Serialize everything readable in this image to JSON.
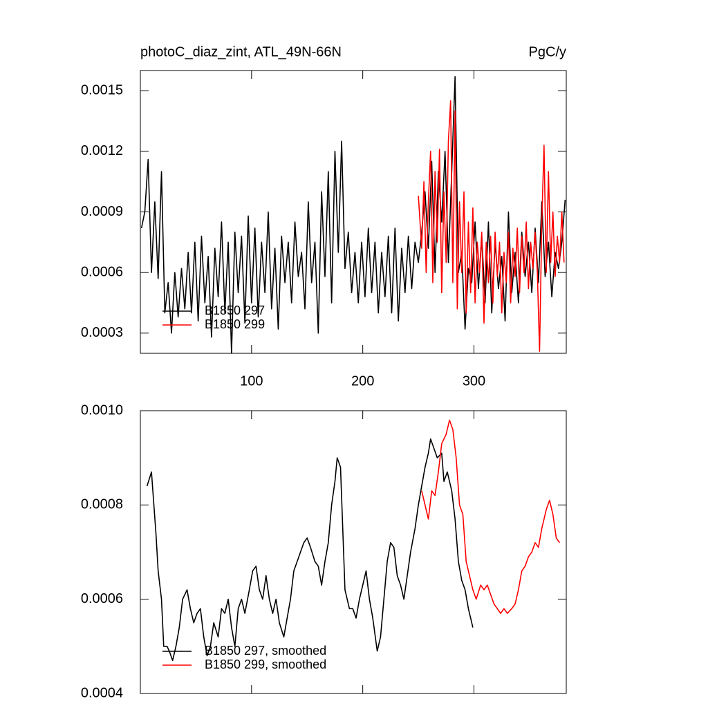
{
  "chart_data": [
    {
      "type": "line",
      "title": "photoC_diaz_zint, ATL_49N-66N",
      "units": "PgC/y",
      "xlim": [
        0,
        383
      ],
      "xticks": [
        100,
        200,
        300
      ],
      "xtick_labels": true,
      "ylim": [
        0.0002,
        0.0016
      ],
      "yticks": [
        0.0003,
        0.0006,
        0.0009,
        0.0012,
        0.0015
      ],
      "legend": "lower left",
      "series": [
        {
          "name": "B1850 297",
          "color": "#000000",
          "x": [
            1,
            4,
            7,
            10,
            13,
            16,
            19,
            22,
            25,
            28,
            31,
            34,
            37,
            40,
            43,
            46,
            49,
            52,
            55,
            58,
            61,
            64,
            67,
            70,
            73,
            76,
            79,
            82,
            85,
            88,
            91,
            94,
            97,
            100,
            103,
            106,
            109,
            112,
            115,
            118,
            121,
            124,
            127,
            130,
            133,
            136,
            139,
            142,
            145,
            148,
            151,
            154,
            157,
            160,
            163,
            166,
            169,
            172,
            175,
            178,
            181,
            184,
            187,
            190,
            193,
            196,
            199,
            202,
            205,
            208,
            211,
            214,
            217,
            220,
            223,
            226,
            229,
            232,
            235,
            238,
            241,
            244,
            247,
            250,
            253,
            256,
            259,
            262,
            265,
            268,
            271,
            274,
            277,
            280,
            283,
            286,
            289,
            292,
            295,
            298,
            301,
            304,
            307,
            310,
            313,
            316,
            319,
            322,
            325,
            328,
            331,
            334,
            337,
            340,
            343,
            346,
            349,
            352,
            355,
            358,
            361,
            364,
            367,
            370,
            373,
            376,
            379,
            382
          ],
          "values": [
            0.00082,
            0.0009,
            0.00116,
            0.0006,
            0.00095,
            0.00057,
            0.0011,
            0.0004,
            0.00055,
            0.0003,
            0.0006,
            0.00038,
            0.00062,
            0.00042,
            0.0007,
            0.0004,
            0.00075,
            0.00036,
            0.00078,
            0.00045,
            0.00068,
            0.00028,
            0.00072,
            0.00048,
            0.00085,
            0.0004,
            0.00075,
            0.0002,
            0.0008,
            0.0005,
            0.00078,
            0.00035,
            0.00088,
            0.00045,
            0.00082,
            0.00038,
            0.00075,
            0.0005,
            0.0009,
            0.00042,
            0.00072,
            0.00032,
            0.00078,
            0.00055,
            0.00075,
            0.00045,
            0.00085,
            0.00058,
            0.0007,
            0.00042,
            0.00095,
            0.00055,
            0.00075,
            0.0003,
            0.001,
            0.00058,
            0.0011,
            0.00045,
            0.0012,
            0.0007,
            0.00125,
            0.00062,
            0.0008,
            0.0005,
            0.0007,
            0.00045,
            0.00075,
            0.00048,
            0.00082,
            0.0005,
            0.00075,
            0.0004,
            0.0007,
            0.00048,
            0.00078,
            0.0004,
            0.00082,
            0.00036,
            0.00072,
            0.0005,
            0.00078,
            0.00052,
            0.00075,
            0.00065,
            0.0008,
            0.001,
            0.00072,
            0.00115,
            0.0006,
            0.0011,
            0.00085,
            0.0012,
            0.00065,
            0.0011,
            0.00157,
            0.0006,
            0.0007,
            0.00032,
            0.00062,
            0.00055,
            0.00085,
            0.00052,
            0.00078,
            0.00045,
            0.00085,
            0.0004,
            0.00075,
            0.00052,
            0.00068,
            0.00036,
            0.0009,
            0.0005,
            0.0007,
            0.00045,
            0.0008,
            0.00058,
            0.00075,
            0.0005,
            0.00082,
            0.00055,
            0.00095,
            0.00058,
            0.00075,
            0.00048,
            0.0007,
            0.00062,
            0.00075,
            0.00096
          ]
        },
        {
          "name": "B1850 299",
          "color": "#ff0000",
          "x": [
            250,
            253,
            255,
            257,
            259,
            261,
            263,
            265,
            267,
            269,
            271,
            273,
            275,
            277,
            279,
            281,
            283,
            285,
            287,
            289,
            291,
            293,
            295,
            297,
            299,
            301,
            303,
            305,
            307,
            309,
            311,
            313,
            315,
            317,
            319,
            321,
            323,
            325,
            327,
            329,
            331,
            333,
            335,
            337,
            339,
            341,
            343,
            345,
            347,
            349,
            351,
            353,
            355,
            357,
            359,
            361,
            363,
            365,
            367,
            369,
            371,
            373,
            375,
            377,
            379,
            381
          ],
          "values": [
            0.00098,
            0.00072,
            0.00105,
            0.0006,
            0.00095,
            0.0012,
            0.00055,
            0.0011,
            0.00075,
            0.00121,
            0.0005,
            0.001,
            0.00065,
            0.00125,
            0.00145,
            0.00055,
            0.0014,
            0.00042,
            0.00095,
            0.0006,
            0.001,
            0.0004,
            0.00085,
            0.0005,
            0.00092,
            0.00045,
            0.00075,
            0.0006,
            0.0008,
            0.00035,
            0.00075,
            0.00055,
            0.00078,
            0.00045,
            0.0008,
            0.00058,
            0.00075,
            0.0004,
            0.0007,
            0.00055,
            0.0008,
            0.00045,
            0.00072,
            0.00058,
            0.00082,
            0.0005,
            0.00078,
            0.0006,
            0.00085,
            0.00052,
            0.00075,
            0.00062,
            0.0008,
            0.0006,
            0.00021,
            0.00085,
            0.00123,
            0.0006,
            0.0011,
            0.00065,
            0.0009,
            0.00058,
            0.00078,
            0.00065,
            0.0009,
            0.00065
          ]
        }
      ]
    },
    {
      "type": "line",
      "xlim": [
        0,
        383
      ],
      "xticks": [
        100,
        200,
        300
      ],
      "xtick_labels": false,
      "ylim": [
        0.0004,
        0.001
      ],
      "yticks": [
        0.0004,
        0.0006,
        0.0008,
        {
          "value": 0.001,
          "label": "0.0010"
        }
      ],
      "legend": "lower left",
      "series": [
        {
          "name": "B1850 297, smoothed",
          "color": "#000000",
          "x": [
            6,
            10,
            14,
            16,
            19,
            21,
            24,
            26,
            29,
            32,
            35,
            38,
            42,
            45,
            48,
            51,
            54,
            57,
            60,
            63,
            66,
            70,
            73,
            76,
            79,
            82,
            85,
            88,
            91,
            94,
            98,
            101,
            104,
            107,
            110,
            113,
            116,
            119,
            122,
            125,
            129,
            132,
            135,
            138,
            141,
            144,
            147,
            150,
            153,
            157,
            160,
            163,
            166,
            169,
            172,
            175,
            177,
            180,
            182,
            184,
            188,
            191,
            194,
            197,
            200,
            203,
            206,
            209,
            213,
            216,
            219,
            222,
            225,
            228,
            231,
            234,
            237,
            240,
            243,
            247,
            250,
            253,
            256,
            259,
            261,
            264,
            267,
            271,
            273,
            276,
            280,
            283,
            286,
            289,
            292,
            295,
            299
          ],
          "values": [
            0.00084,
            0.00087,
            0.00074,
            0.00066,
            0.0006,
            0.0005,
            0.0005,
            0.00049,
            0.00047,
            0.0005,
            0.00054,
            0.0006,
            0.00062,
            0.00058,
            0.00055,
            0.00057,
            0.00058,
            0.00052,
            0.00048,
            0.0005,
            0.00055,
            0.00052,
            0.00058,
            0.00057,
            0.0006,
            0.00054,
            0.0005,
            0.00058,
            0.0006,
            0.00057,
            0.00062,
            0.00066,
            0.00067,
            0.00062,
            0.0006,
            0.00065,
            0.0006,
            0.00057,
            0.0006,
            0.00055,
            0.00052,
            0.00056,
            0.0006,
            0.00066,
            0.00068,
            0.0007,
            0.00072,
            0.00073,
            0.00071,
            0.00068,
            0.00067,
            0.00063,
            0.00068,
            0.00072,
            0.0008,
            0.00085,
            0.0009,
            0.00088,
            0.00075,
            0.00062,
            0.00058,
            0.00058,
            0.00056,
            0.0006,
            0.00063,
            0.00066,
            0.0006,
            0.00056,
            0.00049,
            0.00052,
            0.0006,
            0.00068,
            0.00072,
            0.00071,
            0.00065,
            0.00063,
            0.0006,
            0.00065,
            0.0007,
            0.00075,
            0.0008,
            0.00084,
            0.00088,
            0.00091,
            0.00094,
            0.00092,
            0.0009,
            0.00091,
            0.00085,
            0.00087,
            0.00083,
            0.00077,
            0.00068,
            0.00064,
            0.00062,
            0.00058,
            0.00054
          ]
        },
        {
          "name": "B1850 299, smoothed",
          "color": "#ff0000",
          "x": [
            253,
            256,
            259,
            262,
            265,
            268,
            271,
            275,
            278,
            281,
            284,
            287,
            290,
            293,
            296,
            299,
            302,
            306,
            309,
            312,
            315,
            318,
            321,
            324,
            327,
            330,
            334,
            337,
            340,
            343,
            346,
            349,
            352,
            355,
            358,
            361,
            365,
            368,
            371,
            374,
            377
          ],
          "values": [
            0.00083,
            0.0008,
            0.00077,
            0.00083,
            0.00082,
            0.00087,
            0.00093,
            0.00095,
            0.00098,
            0.00096,
            0.0009,
            0.0008,
            0.00078,
            0.00068,
            0.00065,
            0.00062,
            0.0006,
            0.00063,
            0.00062,
            0.00063,
            0.00061,
            0.00059,
            0.00058,
            0.00057,
            0.00058,
            0.00057,
            0.00058,
            0.00059,
            0.00062,
            0.00066,
            0.00067,
            0.00069,
            0.0007,
            0.00072,
            0.00071,
            0.00075,
            0.00079,
            0.00081,
            0.00078,
            0.00073,
            0.00072
          ]
        }
      ]
    }
  ]
}
